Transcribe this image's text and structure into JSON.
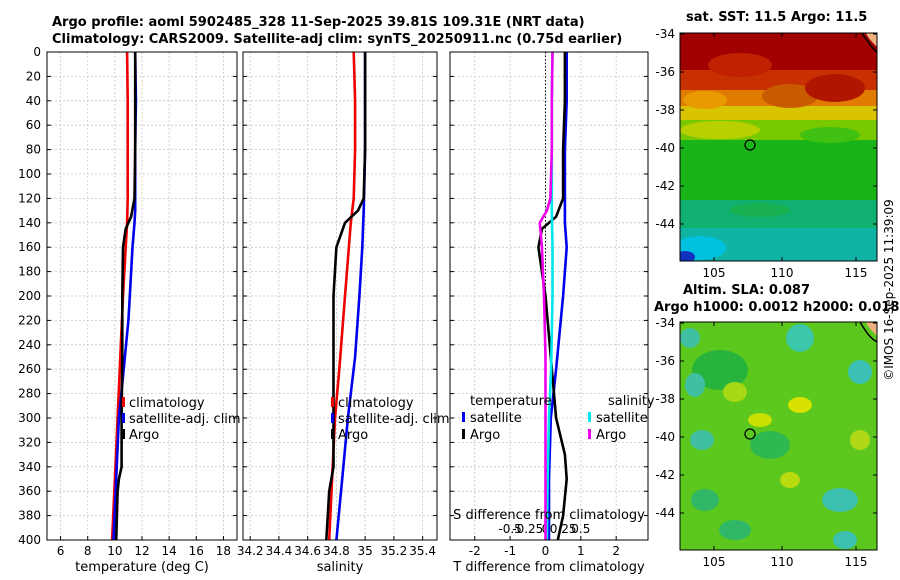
{
  "header": {
    "title_line1": "Argo profile: aoml 5902485_328 11-Sep-2025 39.81S 109.31E (NRT data)",
    "title_line2": "Climatology: CARS2009. Satellite-adj clim: synTS_20250911.nc (0.75d earlier)"
  },
  "sst_map": {
    "title": "sat. SST: 11.5 Argo: 11.5",
    "lat_ticks": [
      "-34",
      "-36",
      "-38",
      "-40",
      "-42",
      "-44"
    ],
    "lon_ticks": [
      "105",
      "110",
      "115"
    ]
  },
  "sla_map": {
    "title_line1": "Altim. SLA: 0.087",
    "title_line2": "Argo h1000: 0.0012 h2000: 0.018",
    "lat_ticks": [
      "-34",
      "-36",
      "-38",
      "-40",
      "-42",
      "-44"
    ],
    "lon_ticks": [
      "105",
      "110",
      "115"
    ]
  },
  "watermark": "©IMOS 16-Sep-2025 11:39:09",
  "colors": {
    "climatology": "#ee0000",
    "satellite": "#0000ee",
    "argo": "#000000",
    "salinity_satellite": "#00e5ee",
    "salinity_argo": "#ee00ee",
    "grid": "#c8c8c8"
  },
  "chart_data": [
    {
      "type": "line",
      "id": "temperature",
      "xlabel": "temperature (deg C)",
      "xlim": [
        5,
        19
      ],
      "xticks": [
        6,
        8,
        10,
        12,
        14,
        16,
        18
      ],
      "ylim": [
        0,
        400
      ],
      "yticks": [
        0,
        20,
        40,
        60,
        80,
        100,
        120,
        140,
        160,
        180,
        200,
        220,
        240,
        260,
        280,
        300,
        320,
        340,
        360,
        380,
        400
      ],
      "grid": true,
      "legend": [
        "climatology",
        "satellite-adj. clim",
        "Argo"
      ],
      "legend_position": "lower-right",
      "series": [
        {
          "name": "climatology",
          "color": "#ee0000",
          "depth": [
            0,
            40,
            80,
            120,
            140,
            200,
            250,
            300,
            350,
            400
          ],
          "values": [
            10.9,
            10.95,
            10.95,
            10.95,
            10.9,
            10.6,
            10.4,
            10.2,
            10.0,
            9.8
          ]
        },
        {
          "name": "satellite-adj. clim",
          "color": "#0000ee",
          "depth": [
            0,
            40,
            80,
            130,
            140,
            160,
            200,
            220,
            260,
            300,
            350,
            400
          ],
          "values": [
            11.5,
            11.55,
            11.5,
            11.5,
            11.45,
            11.3,
            11.1,
            11.0,
            10.65,
            10.3,
            10.1,
            9.9
          ]
        },
        {
          "name": "Argo",
          "color": "#000000",
          "depth": [
            0,
            40,
            80,
            120,
            135,
            145,
            160,
            200,
            250,
            300,
            340,
            350,
            360,
            400
          ],
          "values": [
            11.5,
            11.5,
            11.5,
            11.45,
            11.2,
            10.8,
            10.6,
            10.55,
            10.55,
            10.5,
            10.5,
            10.3,
            10.2,
            10.1
          ]
        }
      ]
    },
    {
      "type": "line",
      "id": "salinity",
      "xlabel": "salinity",
      "xlim": [
        34.15,
        35.5
      ],
      "xticks": [
        34.2,
        34.4,
        34.6,
        34.8,
        35,
        35.2,
        35.4
      ],
      "ylim": [
        0,
        400
      ],
      "yticks": [
        0,
        20,
        40,
        60,
        80,
        100,
        120,
        140,
        160,
        180,
        200,
        220,
        240,
        260,
        280,
        300,
        320,
        340,
        360,
        380,
        400
      ],
      "grid": true,
      "legend": [
        "climatology",
        "satellite-adj. clim",
        "Argo"
      ],
      "legend_position": "lower-right",
      "series": [
        {
          "name": "climatology",
          "color": "#ee0000",
          "depth": [
            0,
            40,
            80,
            120,
            140,
            200,
            260,
            300,
            350,
            400
          ],
          "values": [
            34.92,
            34.93,
            34.93,
            34.92,
            34.9,
            34.86,
            34.82,
            34.79,
            34.77,
            34.75
          ]
        },
        {
          "name": "satellite-adj. clim",
          "color": "#0000ee",
          "depth": [
            0,
            40,
            80,
            130,
            160,
            200,
            250,
            300,
            350,
            400
          ],
          "values": [
            35.0,
            35.0,
            35.0,
            34.99,
            34.98,
            34.96,
            34.93,
            34.88,
            34.84,
            34.8
          ]
        },
        {
          "name": "Argo",
          "color": "#000000",
          "depth": [
            0,
            40,
            80,
            120,
            130,
            140,
            160,
            200,
            250,
            300,
            340,
            360,
            380,
            400
          ],
          "values": [
            35.0,
            35.0,
            35.0,
            34.99,
            34.95,
            34.86,
            34.8,
            34.78,
            34.78,
            34.78,
            34.78,
            34.75,
            34.74,
            34.73
          ]
        }
      ]
    },
    {
      "type": "line",
      "id": "difference",
      "xlabel": "T difference from climatology",
      "top_axis_label": "S difference from climatology",
      "xlim": [
        -2.7,
        2.9
      ],
      "xticks": [
        -2,
        -1,
        0,
        1,
        2
      ],
      "top_xticks": [
        -0.5,
        -0.25,
        0,
        0.25,
        0.5
      ],
      "top_xtick_labels": [
        "-0.5",
        "-0.25",
        "0",
        "0.25",
        "0.5"
      ],
      "ylim": [
        0,
        400
      ],
      "grid": true,
      "legend_groups": [
        {
          "heading": "temperature",
          "items": [
            "satellite",
            "Argo"
          ]
        },
        {
          "heading": "salinity",
          "items": [
            "satellite",
            "Argo"
          ]
        }
      ],
      "series": [
        {
          "name": "temperature satellite",
          "color": "#0000ee",
          "depth": [
            0,
            40,
            80,
            120,
            140,
            160,
            200,
            260,
            300,
            350,
            400
          ],
          "values": [
            0.6,
            0.6,
            0.55,
            0.55,
            0.55,
            0.6,
            0.5,
            0.3,
            0.15,
            0.1,
            0.1
          ]
        },
        {
          "name": "temperature Argo",
          "color": "#000000",
          "depth": [
            0,
            40,
            80,
            120,
            135,
            145,
            160,
            180,
            200,
            250,
            300,
            330,
            350,
            380,
            400
          ],
          "values": [
            0.55,
            0.55,
            0.5,
            0.5,
            0.3,
            -0.1,
            -0.2,
            -0.1,
            0.0,
            0.15,
            0.3,
            0.55,
            0.6,
            0.5,
            0.35
          ]
        },
        {
          "name": "salinity satellite",
          "color": "#00e5ee",
          "depth": [
            0,
            40,
            80,
            130,
            160,
            200,
            260,
            300,
            350,
            400
          ],
          "values": [
            0.1,
            0.09,
            0.09,
            0.09,
            0.1,
            0.1,
            0.08,
            0.05,
            0.03,
            0.02
          ]
        },
        {
          "name": "salinity Argo",
          "color": "#ee00ee",
          "depth": [
            0,
            40,
            80,
            120,
            130,
            135,
            140,
            160,
            200,
            250,
            300,
            400
          ],
          "values": [
            0.1,
            0.09,
            0.09,
            0.07,
            0.02,
            -0.03,
            -0.08,
            -0.05,
            -0.02,
            0.0,
            0.0,
            0.0
          ]
        }
      ]
    }
  ]
}
